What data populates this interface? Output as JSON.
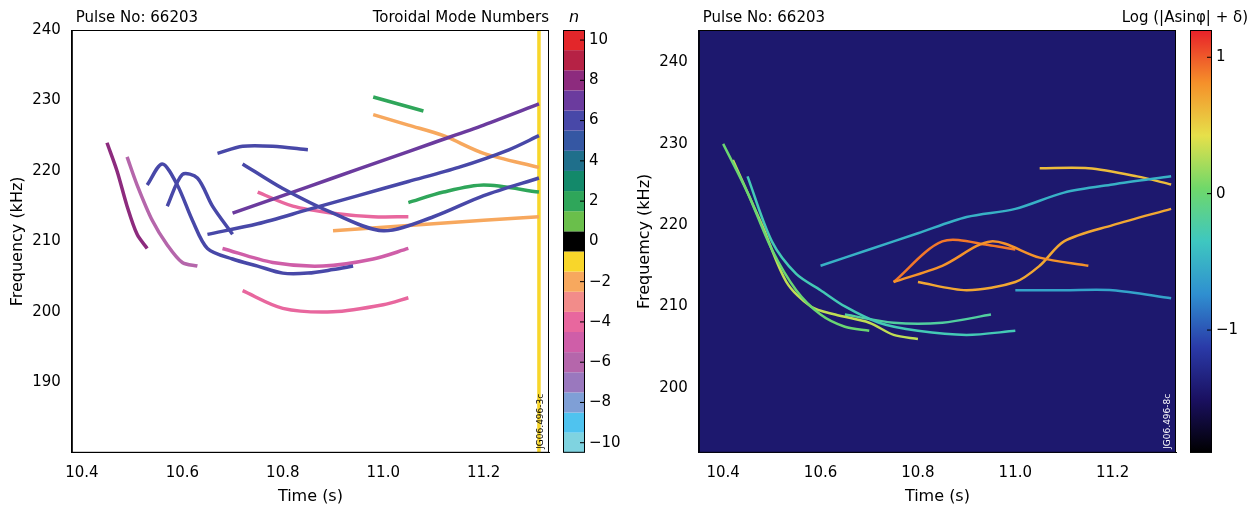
{
  "chart_data": [
    {
      "type": "line",
      "title": "Pulse No: 66203",
      "subtitle": "Toroidal Mode Numbers",
      "x_label": "Time (s)",
      "y_label": "Frequency (kHz)",
      "annotation": "JG06.496-3c",
      "xlim": [
        10.38,
        11.33
      ],
      "xticks": [
        10.4,
        10.6,
        10.8,
        {
          "value": 11,
          "label": "11.0"
        },
        11.2
      ],
      "ylim": [
        180,
        240
      ],
      "yticks": [
        190,
        200,
        210,
        220,
        230,
        240
      ],
      "grid": false,
      "colorbar": {
        "label": "n",
        "lim": [
          -10.5,
          10.5
        ],
        "ticks": [
          {
            "value": -10,
            "label": "−10"
          },
          {
            "value": -8,
            "label": "−8"
          },
          {
            "value": -6,
            "label": "−6"
          },
          {
            "value": -4,
            "label": "−4"
          },
          {
            "value": -2,
            "label": "−2"
          },
          0,
          2,
          4,
          6,
          8,
          10
        ],
        "levels": [
          -10,
          -9,
          -8,
          -7,
          -6,
          -5,
          -4,
          -3,
          -2,
          -1,
          0,
          1,
          2,
          3,
          4,
          5,
          6,
          7,
          8,
          9,
          10
        ],
        "colors": [
          "#7fd3e0",
          "#4fc3ef",
          "#7f9fd6",
          "#9a78be",
          "#b566ab",
          "#cf5ea8",
          "#e8679e",
          "#f28c8a",
          "#f7a85e",
          "#f8d62a",
          "#000000",
          "#6abf4b",
          "#2fa65a",
          "#13896a",
          "#1f6f8b",
          "#3557a3",
          "#4848a8",
          "#6b3b9e",
          "#8d2b7e",
          "#b62245",
          "#e3262a"
        ]
      },
      "series": [
        {
          "n": 8,
          "x": [
            10.45,
            10.47,
            10.49,
            10.51,
            10.53
          ],
          "y": [
            224,
            220,
            215,
            211,
            209
          ]
        },
        {
          "n": -6,
          "x": [
            10.49,
            10.51,
            10.54,
            10.57,
            10.6,
            10.63
          ],
          "y": [
            222,
            218,
            213,
            209.5,
            207,
            206.5
          ]
        },
        {
          "n": 6,
          "x": [
            10.53,
            10.56,
            10.59,
            10.62,
            10.65,
            10.7,
            10.75,
            10.8,
            10.85,
            10.9,
            10.94
          ],
          "y": [
            218,
            221,
            218,
            213,
            209,
            207.5,
            206.5,
            205.5,
            205.5,
            206,
            206.5
          ]
        },
        {
          "n": 6,
          "x": [
            10.57,
            10.6,
            10.63,
            10.66,
            10.7
          ],
          "y": [
            215,
            219.5,
            219,
            215,
            211
          ]
        },
        {
          "n": 6,
          "x": [
            10.67,
            10.72,
            10.78,
            10.85
          ],
          "y": [
            222.5,
            223.5,
            223.5,
            223
          ]
        },
        {
          "n": 6,
          "x": [
            10.65,
            10.75,
            10.85,
            10.95,
            11.05,
            11.15,
            11.25,
            11.31
          ],
          "y": [
            211,
            212.5,
            214.5,
            216.5,
            218.5,
            220.5,
            223,
            225
          ]
        },
        {
          "n": 6,
          "x": [
            10.72,
            10.8,
            10.9,
            11.0,
            11.1,
            11.2,
            11.31
          ],
          "y": [
            221,
            217.5,
            214,
            211.5,
            213.5,
            216.5,
            219
          ]
        },
        {
          "n": 7,
          "x": [
            10.7,
            10.8,
            10.9,
            11.0,
            11.1,
            11.2,
            11.31
          ],
          "y": [
            214,
            216.5,
            219,
            221.5,
            224,
            226.5,
            229.5
          ]
        },
        {
          "n": -4,
          "x": [
            10.72,
            10.8,
            10.9,
            11.0,
            11.05
          ],
          "y": [
            203,
            200.5,
            200,
            201,
            202
          ]
        },
        {
          "n": -5,
          "x": [
            10.68,
            10.78,
            10.88,
            10.98,
            11.05
          ],
          "y": [
            209,
            207,
            206.5,
            207.5,
            209
          ]
        },
        {
          "n": -4,
          "x": [
            10.75,
            10.82,
            10.9,
            10.98,
            11.05
          ],
          "y": [
            217,
            215,
            214,
            213.5,
            213.5
          ]
        },
        {
          "n": -2,
          "x": [
            10.9,
            11.0,
            11.1,
            11.2,
            11.31
          ],
          "y": [
            211.5,
            212,
            212.5,
            213,
            213.5
          ]
        },
        {
          "n": -2,
          "x": [
            10.98,
            11.05,
            11.12,
            11.2,
            11.31
          ],
          "y": [
            228,
            226.5,
            225,
            222.5,
            220.5
          ]
        },
        {
          "n": 2,
          "x": [
            10.98,
            11.03,
            11.08
          ],
          "y": [
            230.5,
            229.5,
            228.5
          ]
        },
        {
          "n": 2,
          "x": [
            11.05,
            11.12,
            11.2,
            11.31
          ],
          "y": [
            215.5,
            217,
            218,
            217
          ]
        },
        {
          "n": -1,
          "x": [
            11.31,
            11.31
          ],
          "y": [
            180,
            240
          ]
        }
      ]
    },
    {
      "type": "line",
      "title": "Pulse No: 66203",
      "x_label": "Time (s)",
      "y_label": "Frequemcy (kHz)",
      "annotation": "JG06.496-8c",
      "xlim": [
        10.35,
        11.33
      ],
      "xticks": [
        10.4,
        10.6,
        10.8,
        {
          "value": 11,
          "label": "11.0"
        },
        11.2
      ],
      "ylim": [
        192,
        244
      ],
      "yticks": [
        200,
        210,
        220,
        230,
        240
      ],
      "grid": false,
      "colorbar": {
        "label": "Log (|Asinφ| + δ)",
        "lim": [
          -1.9,
          1.2
        ],
        "ticks": [
          {
            "value": -1,
            "label": "−1"
          },
          0,
          1
        ],
        "colors": [
          "#000000",
          "#1a1060",
          "#2a3aa8",
          "#2f8fd0",
          "#3ec7c0",
          "#6fd86a",
          "#e6e04a",
          "#f5902a",
          "#e8202a"
        ]
      },
      "series": [
        {
          "level": 0,
          "x": [
            10.4,
            10.45,
            10.5,
            10.55,
            10.6,
            10.65,
            10.7
          ],
          "y": [
            230,
            224,
            217,
            212,
            209,
            207.5,
            207
          ]
        },
        {
          "level": 0.3,
          "x": [
            10.42,
            10.48,
            10.53,
            10.58,
            10.63,
            10.7,
            10.75,
            10.8
          ],
          "y": [
            228,
            220,
            213,
            210,
            209,
            208,
            206.5,
            206
          ]
        },
        {
          "level": -0.3,
          "x": [
            10.45,
            10.5,
            10.55,
            10.6,
            10.65,
            10.72,
            10.8,
            10.9,
            11.0
          ],
          "y": [
            226,
            218,
            214,
            212,
            210,
            208,
            207,
            206.5,
            207
          ]
        },
        {
          "level": -0.5,
          "x": [
            10.6,
            10.7,
            10.8,
            10.9,
            11.0,
            11.1,
            11.2,
            11.32
          ],
          "y": [
            215,
            217,
            219,
            221,
            222,
            224,
            225,
            226
          ]
        },
        {
          "level": 0.8,
          "x": [
            10.75,
            10.85,
            10.95,
            11.05,
            11.15
          ],
          "y": [
            213,
            215,
            218,
            216,
            215
          ]
        },
        {
          "level": 0.7,
          "x": [
            10.8,
            10.9,
            11.0,
            11.05,
            11.1,
            11.2,
            11.32
          ],
          "y": [
            213,
            212,
            213,
            215,
            218,
            220,
            222
          ]
        },
        {
          "level": 0.9,
          "x": [
            10.75,
            10.85,
            10.95,
            11.0
          ],
          "y": [
            213,
            218,
            217.5,
            217
          ]
        },
        {
          "level": 0.6,
          "x": [
            11.05,
            11.15,
            11.25,
            11.32
          ],
          "y": [
            227,
            227,
            226,
            225
          ]
        },
        {
          "level": -0.6,
          "x": [
            11.0,
            11.1,
            11.2,
            11.32
          ],
          "y": [
            212,
            212,
            212,
            211
          ]
        },
        {
          "level": -0.2,
          "x": [
            10.65,
            10.75,
            10.85,
            10.95
          ],
          "y": [
            209,
            208,
            208,
            209
          ]
        }
      ]
    }
  ]
}
